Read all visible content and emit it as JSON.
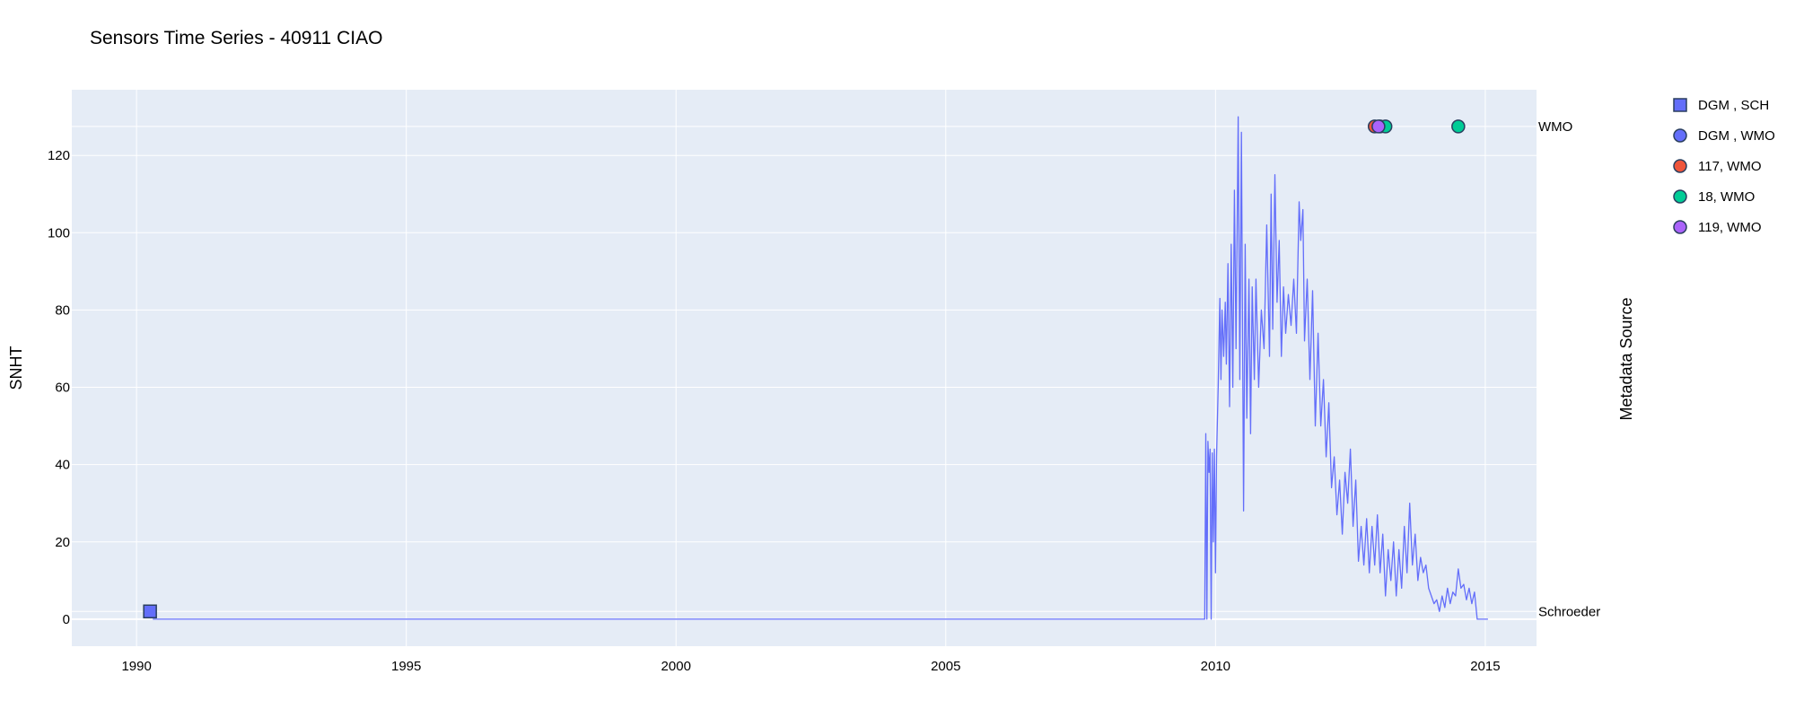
{
  "chart_data": {
    "type": "line",
    "title": "Sensors Time Series - 40911 CIAO",
    "xlabel": "",
    "ylabel": "SNHT",
    "y2label": "Metadata Source",
    "xlim": [
      1988.8,
      2015.95
    ],
    "ylim": [
      -7,
      137
    ],
    "x_ticks": [
      1990,
      1995,
      2000,
      2005,
      2010,
      2015
    ],
    "y_ticks": [
      0,
      20,
      40,
      60,
      80,
      100,
      120
    ],
    "y2_categories": [
      "Schroeder",
      "WMO"
    ],
    "y2_values": {
      "Schroeder": 2,
      "WMO": 127.5
    },
    "grid": true,
    "legend_position": "top-right",
    "colors": {
      "plot_bg": "#e5ecf6",
      "grid": "#ffffff",
      "line": "#636efa"
    },
    "series": [
      {
        "kind": "line",
        "color": "#636efa",
        "points": [
          [
            1990.3,
            0
          ],
          [
            2009.8,
            0
          ],
          [
            2009.82,
            48
          ],
          [
            2009.84,
            0
          ],
          [
            2009.86,
            46
          ],
          [
            2009.88,
            38
          ],
          [
            2009.9,
            44
          ],
          [
            2009.92,
            0
          ],
          [
            2009.94,
            43
          ],
          [
            2009.96,
            20
          ],
          [
            2009.98,
            44
          ],
          [
            2010.0,
            12
          ],
          [
            2010.02,
            42
          ],
          [
            2010.05,
            60
          ],
          [
            2010.08,
            83
          ],
          [
            2010.1,
            62
          ],
          [
            2010.12,
            80
          ],
          [
            2010.15,
            68
          ],
          [
            2010.18,
            82
          ],
          [
            2010.2,
            66
          ],
          [
            2010.23,
            92
          ],
          [
            2010.26,
            55
          ],
          [
            2010.29,
            97
          ],
          [
            2010.32,
            60
          ],
          [
            2010.35,
            111
          ],
          [
            2010.38,
            70
          ],
          [
            2010.42,
            130
          ],
          [
            2010.45,
            62
          ],
          [
            2010.48,
            126
          ],
          [
            2010.52,
            28
          ],
          [
            2010.55,
            97
          ],
          [
            2010.58,
            52
          ],
          [
            2010.62,
            88
          ],
          [
            2010.65,
            48
          ],
          [
            2010.68,
            86
          ],
          [
            2010.72,
            62
          ],
          [
            2010.75,
            88
          ],
          [
            2010.8,
            60
          ],
          [
            2010.85,
            80
          ],
          [
            2010.9,
            70
          ],
          [
            2010.95,
            102
          ],
          [
            2011.0,
            68
          ],
          [
            2011.03,
            110
          ],
          [
            2011.06,
            75
          ],
          [
            2011.1,
            115
          ],
          [
            2011.14,
            82
          ],
          [
            2011.18,
            98
          ],
          [
            2011.22,
            68
          ],
          [
            2011.26,
            86
          ],
          [
            2011.3,
            74
          ],
          [
            2011.35,
            84
          ],
          [
            2011.4,
            76
          ],
          [
            2011.45,
            88
          ],
          [
            2011.5,
            74
          ],
          [
            2011.55,
            108
          ],
          [
            2011.58,
            98
          ],
          [
            2011.62,
            106
          ],
          [
            2011.65,
            72
          ],
          [
            2011.7,
            88
          ],
          [
            2011.75,
            62
          ],
          [
            2011.8,
            85
          ],
          [
            2011.85,
            50
          ],
          [
            2011.9,
            74
          ],
          [
            2011.95,
            50
          ],
          [
            2012.0,
            62
          ],
          [
            2012.05,
            42
          ],
          [
            2012.1,
            56
          ],
          [
            2012.15,
            34
          ],
          [
            2012.2,
            42
          ],
          [
            2012.25,
            27
          ],
          [
            2012.3,
            36
          ],
          [
            2012.35,
            22
          ],
          [
            2012.4,
            38
          ],
          [
            2012.45,
            30
          ],
          [
            2012.5,
            44
          ],
          [
            2012.55,
            24
          ],
          [
            2012.6,
            36
          ],
          [
            2012.65,
            15
          ],
          [
            2012.7,
            24
          ],
          [
            2012.75,
            14
          ],
          [
            2012.8,
            26
          ],
          [
            2012.85,
            12
          ],
          [
            2012.9,
            24
          ],
          [
            2012.95,
            14
          ],
          [
            2013.0,
            27
          ],
          [
            2013.05,
            12
          ],
          [
            2013.1,
            22
          ],
          [
            2013.15,
            6
          ],
          [
            2013.2,
            18
          ],
          [
            2013.25,
            10
          ],
          [
            2013.3,
            20
          ],
          [
            2013.35,
            6
          ],
          [
            2013.4,
            18
          ],
          [
            2013.45,
            8
          ],
          [
            2013.5,
            24
          ],
          [
            2013.55,
            12
          ],
          [
            2013.6,
            30
          ],
          [
            2013.65,
            14
          ],
          [
            2013.7,
            22
          ],
          [
            2013.75,
            10
          ],
          [
            2013.8,
            16
          ],
          [
            2013.85,
            12
          ],
          [
            2013.9,
            14
          ],
          [
            2013.95,
            8
          ],
          [
            2014.0,
            6
          ],
          [
            2014.05,
            4
          ],
          [
            2014.1,
            5
          ],
          [
            2014.15,
            2
          ],
          [
            2014.2,
            6
          ],
          [
            2014.25,
            3
          ],
          [
            2014.3,
            8
          ],
          [
            2014.35,
            4
          ],
          [
            2014.4,
            7
          ],
          [
            2014.45,
            6
          ],
          [
            2014.5,
            13
          ],
          [
            2014.55,
            8
          ],
          [
            2014.6,
            9
          ],
          [
            2014.65,
            5
          ],
          [
            2014.7,
            8
          ],
          [
            2014.75,
            4
          ],
          [
            2014.8,
            7
          ],
          [
            2014.85,
            0
          ],
          [
            2015.05,
            0
          ]
        ]
      },
      {
        "kind": "marker",
        "name": "DGM , SCH",
        "symbol": "square",
        "color": "#636efa",
        "points": [
          [
            1990.25,
            2
          ]
        ]
      },
      {
        "kind": "marker",
        "name": "DGM , WMO",
        "symbol": "circle",
        "color": "#636efa",
        "points": [
          [
            2013.05,
            127.5
          ]
        ]
      },
      {
        "kind": "marker",
        "name": "117, WMO",
        "symbol": "circle",
        "color": "#ef553b",
        "points": [
          [
            2012.95,
            127.5
          ]
        ]
      },
      {
        "kind": "marker",
        "name": "18, WMO",
        "symbol": "circle",
        "color": "#00cc96",
        "points": [
          [
            2013.15,
            127.5
          ],
          [
            2014.5,
            127.5
          ]
        ]
      },
      {
        "kind": "marker",
        "name": "119, WMO",
        "symbol": "circle",
        "color": "#ab63fa",
        "points": [
          [
            2013.02,
            127.5
          ]
        ]
      }
    ]
  }
}
